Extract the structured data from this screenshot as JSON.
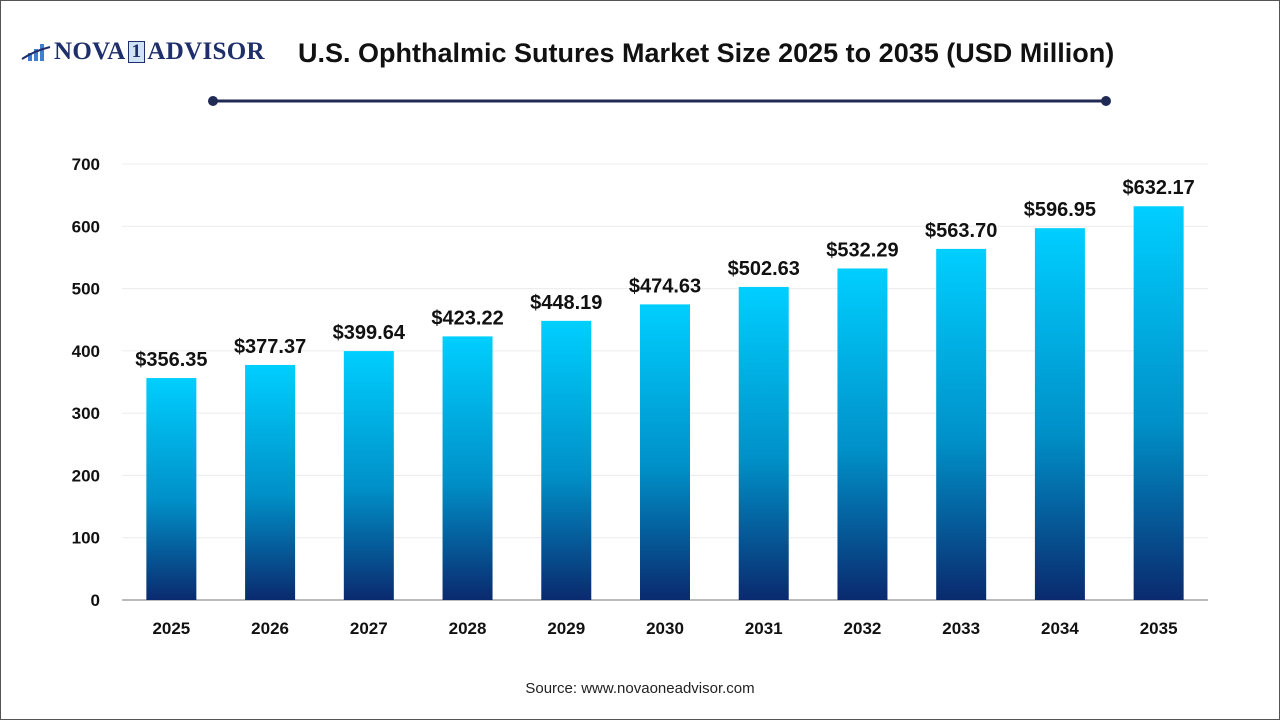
{
  "logo": {
    "text_left": "NOVA",
    "text_one": "1",
    "text_right": "ADVISOR"
  },
  "colors": {
    "bar_top": "#00cfff",
    "bar_bottom": "#0a2a6e",
    "title_line": "#1f2a55"
  },
  "source": "Source: www.novaoneadvisor.com",
  "chart_data": {
    "type": "bar",
    "title": "U.S. Ophthalmic Sutures Market Size 2025 to 2035 (USD Million)",
    "categories": [
      "2025",
      "2026",
      "2027",
      "2028",
      "2029",
      "2030",
      "2031",
      "2032",
      "2033",
      "2034",
      "2035"
    ],
    "values": [
      356.35,
      377.37,
      399.64,
      423.22,
      448.19,
      474.63,
      502.63,
      532.29,
      563.7,
      596.95,
      632.17
    ],
    "labels": [
      "$356.35",
      "$377.37",
      "$399.64",
      "$423.22",
      "$448.19",
      "$474.63",
      "$502.63",
      "$532.29",
      "$563.70",
      "$596.95",
      "$632.17"
    ],
    "yticks": [
      0,
      100,
      200,
      300,
      400,
      500,
      600,
      700
    ],
    "ylim": [
      0,
      700
    ],
    "grid": true,
    "xlabel": "",
    "ylabel": ""
  }
}
